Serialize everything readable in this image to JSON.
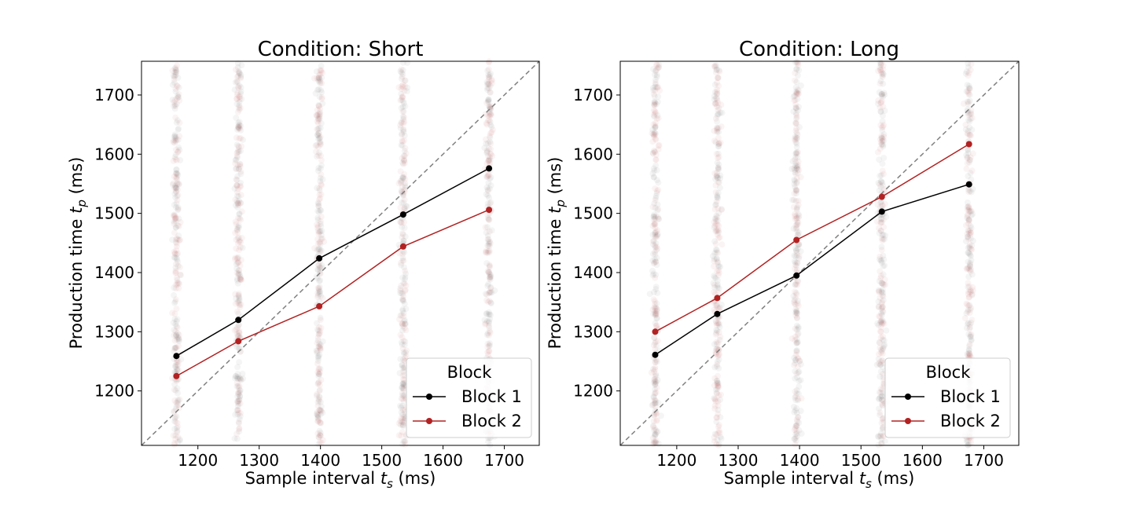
{
  "chart_data": [
    {
      "type": "line",
      "title": "Condition: Short",
      "xlabel": "Sample interval ",
      "xlabel_sym": "t",
      "xlabel_sub": "s",
      "xlabel_unit": " (ms)",
      "ylabel": "Production time ",
      "ylabel_sym": "t",
      "ylabel_sub": "p",
      "ylabel_unit": " (ms)",
      "xlim": [
        1108,
        1757
      ],
      "ylim": [
        1108,
        1757
      ],
      "xticks": [
        1200,
        1300,
        1400,
        1500,
        1600,
        1700
      ],
      "yticks": [
        1200,
        1300,
        1400,
        1500,
        1600,
        1700
      ],
      "identity_line": true,
      "legend": {
        "title": "Block",
        "placement": "lower-right"
      },
      "x": [
        1165,
        1266,
        1398,
        1535,
        1675
      ],
      "series": [
        {
          "name": "Block 1",
          "color": "#000000",
          "values": [
            1259,
            1320,
            1424,
            1498,
            1576
          ]
        },
        {
          "name": "Block 2",
          "color": "#b22222",
          "values": [
            1225,
            1284,
            1343,
            1444,
            1506
          ]
        }
      ]
    },
    {
      "type": "line",
      "title": "Condition: Long",
      "xlabel": "Sample interval ",
      "xlabel_sym": "t",
      "xlabel_sub": "s",
      "xlabel_unit": " (ms)",
      "ylabel": "Production time ",
      "ylabel_sym": "t",
      "ylabel_sub": "p",
      "ylabel_unit": " (ms)",
      "xlim": [
        1108,
        1757
      ],
      "ylim": [
        1108,
        1757
      ],
      "xticks": [
        1200,
        1300,
        1400,
        1500,
        1600,
        1700
      ],
      "yticks": [
        1200,
        1300,
        1400,
        1500,
        1600,
        1700
      ],
      "identity_line": true,
      "legend": {
        "title": "Block",
        "placement": "lower-right"
      },
      "x": [
        1165,
        1266,
        1395,
        1534,
        1676
      ],
      "series": [
        {
          "name": "Block 1",
          "color": "#000000",
          "values": [
            1261,
            1330,
            1395,
            1503,
            1549
          ]
        },
        {
          "name": "Block 2",
          "color": "#b22222",
          "values": [
            1300,
            1357,
            1455,
            1528,
            1617
          ]
        }
      ]
    }
  ],
  "colors": {
    "identity": "#808080",
    "scatter_black": "#000000",
    "scatter_red": "#b22222"
  }
}
